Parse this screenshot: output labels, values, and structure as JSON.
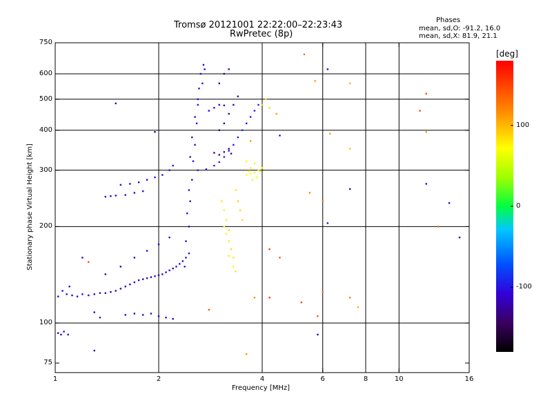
{
  "chart_data": {
    "type": "scatter",
    "title": "Tromsø 20121001 22:22:00–22:23:43",
    "subtitle": "RwPretec (8p)",
    "xlabel": "Frequency [MHz]",
    "ylabel": "Stationary phase Virtual Height [km]",
    "x_scale": "log",
    "y_scale": "log",
    "xlim": [
      1,
      16
    ],
    "ylim": [
      70,
      750
    ],
    "x_ticks": [
      {
        "value": 1,
        "label": "1"
      },
      {
        "value": 2,
        "label": "2"
      },
      {
        "value": 4,
        "label": "4"
      },
      {
        "value": 6,
        "label": "6"
      },
      {
        "value": 8,
        "label": "8"
      },
      {
        "value": 10,
        "label": "10"
      },
      {
        "value": 16,
        "label": "16"
      }
    ],
    "x_grid": [
      2,
      4,
      6,
      8,
      10
    ],
    "y_ticks": [
      {
        "value": 75,
        "label": "75"
      },
      {
        "value": 100,
        "label": "100"
      },
      {
        "value": 200,
        "label": "200"
      },
      {
        "value": 300,
        "label": "300"
      },
      {
        "value": 400,
        "label": "400"
      },
      {
        "value": 500,
        "label": "500"
      },
      {
        "value": 600,
        "label": "600"
      },
      {
        "value": 750,
        "label": "750"
      }
    ],
    "y_grid": [
      100,
      200,
      300,
      400,
      500,
      600
    ],
    "grid": true,
    "legend": {
      "title": "Phases",
      "lines": [
        "mean, sd,O: -91.2, 16.0",
        "mean, sd,X: 81.9, 21.1"
      ]
    },
    "colorbar": {
      "label": "[deg]",
      "range": [
        -180,
        180
      ],
      "ticks": [
        {
          "value": 100,
          "label": "100"
        },
        {
          "value": 0,
          "label": "0"
        },
        {
          "value": -100,
          "label": "-100"
        }
      ]
    },
    "series": [
      {
        "points": [
          [
            1.02,
            93,
            -120
          ],
          [
            1.04,
            92,
            -115
          ],
          [
            1.06,
            94,
            -110
          ],
          [
            1.09,
            92,
            -118
          ],
          [
            1.02,
            121,
            -105
          ],
          [
            1.05,
            126,
            -112
          ],
          [
            1.08,
            123,
            -118
          ],
          [
            1.12,
            122,
            -110
          ],
          [
            1.16,
            121,
            -120
          ],
          [
            1.2,
            123,
            -114
          ],
          [
            1.25,
            122,
            -116
          ],
          [
            1.3,
            123,
            -118
          ],
          [
            1.35,
            124,
            -115
          ],
          [
            1.4,
            124,
            -120
          ],
          [
            1.45,
            125,
            -118
          ],
          [
            1.5,
            126,
            -120
          ],
          [
            1.55,
            128,
            -122
          ],
          [
            1.6,
            130,
            -118
          ],
          [
            1.65,
            132,
            -115
          ],
          [
            1.7,
            134,
            -112
          ],
          [
            1.75,
            136,
            -118
          ],
          [
            1.8,
            137,
            -120
          ],
          [
            1.85,
            138,
            -116
          ],
          [
            1.9,
            139,
            -112
          ],
          [
            1.95,
            140,
            -110
          ],
          [
            2.0,
            141,
            -114
          ],
          [
            2.05,
            142,
            -108
          ],
          [
            2.1,
            144,
            -112
          ],
          [
            2.15,
            146,
            -106
          ],
          [
            2.2,
            148,
            -110
          ],
          [
            2.25,
            150,
            -105
          ],
          [
            2.3,
            153,
            -100
          ],
          [
            2.35,
            156,
            -106
          ],
          [
            2.4,
            160,
            -110
          ],
          [
            2.45,
            165,
            -102
          ],
          [
            1.55,
            150,
            -130
          ],
          [
            1.7,
            160,
            -118
          ],
          [
            1.85,
            168,
            -112
          ],
          [
            2.0,
            176,
            -110
          ],
          [
            2.15,
            185,
            -105
          ],
          [
            1.3,
            108,
            -108
          ],
          [
            1.35,
            104,
            -112
          ],
          [
            1.6,
            106,
            -115
          ],
          [
            1.7,
            107,
            -118
          ],
          [
            1.8,
            106,
            -110
          ],
          [
            1.9,
            107,
            -112
          ],
          [
            2.0,
            105,
            -108
          ],
          [
            2.1,
            104,
            -110
          ],
          [
            2.2,
            103,
            -115
          ],
          [
            1.4,
            248,
            -110
          ],
          [
            1.45,
            249,
            -115
          ],
          [
            1.5,
            250,
            -112
          ],
          [
            1.6,
            251,
            -118
          ],
          [
            1.7,
            255,
            -114
          ],
          [
            1.8,
            258,
            -110
          ],
          [
            1.55,
            270,
            -112
          ],
          [
            1.65,
            272,
            -115
          ],
          [
            1.75,
            275,
            -108
          ],
          [
            1.85,
            280,
            -110
          ],
          [
            1.95,
            285,
            -105
          ],
          [
            2.05,
            290,
            -102
          ],
          [
            2.15,
            300,
            -100
          ],
          [
            2.2,
            310,
            -106
          ],
          [
            2.45,
            200,
            -110
          ],
          [
            2.47,
            240,
            -112
          ],
          [
            2.5,
            280,
            -108
          ],
          [
            2.52,
            320,
            -106
          ],
          [
            2.55,
            360,
            -104
          ],
          [
            2.58,
            420,
            -102
          ],
          [
            2.6,
            480,
            -100
          ],
          [
            2.62,
            540,
            -104
          ],
          [
            2.65,
            600,
            -108
          ],
          [
            2.7,
            640,
            -110
          ],
          [
            2.72,
            620,
            -106
          ],
          [
            2.68,
            560,
            -104
          ],
          [
            2.6,
            500,
            -100
          ],
          [
            2.55,
            440,
            -108
          ],
          [
            2.5,
            380,
            -112
          ],
          [
            2.47,
            330,
            -110
          ],
          [
            2.45,
            260,
            -104
          ],
          [
            2.42,
            220,
            -106
          ],
          [
            2.4,
            180,
            -110
          ],
          [
            2.38,
            150,
            -106
          ],
          [
            2.6,
            300,
            -100
          ],
          [
            2.75,
            302,
            -104
          ],
          [
            2.9,
            310,
            -98
          ],
          [
            3.0,
            318,
            -102
          ],
          [
            3.1,
            330,
            -96
          ],
          [
            3.2,
            345,
            -100
          ],
          [
            3.3,
            360,
            -104
          ],
          [
            3.4,
            380,
            -98
          ],
          [
            3.5,
            400,
            -96
          ],
          [
            3.6,
            420,
            -100
          ],
          [
            3.7,
            440,
            -104
          ],
          [
            3.8,
            460,
            -98
          ],
          [
            3.9,
            480,
            -96
          ],
          [
            2.9,
            340,
            -135
          ],
          [
            3.0,
            335,
            -130
          ],
          [
            3.1,
            342,
            -125
          ],
          [
            3.2,
            350,
            -128
          ],
          [
            3.25,
            338,
            -132
          ],
          [
            3.0,
            400,
            -140
          ],
          [
            3.1,
            420,
            -135
          ],
          [
            3.2,
            450,
            -138
          ],
          [
            3.3,
            480,
            -130
          ],
          [
            3.4,
            510,
            -135
          ],
          [
            3.0,
            560,
            -130
          ],
          [
            3.1,
            600,
            -135
          ],
          [
            3.2,
            620,
            -128
          ],
          [
            2.8,
            460,
            -110
          ],
          [
            2.9,
            470,
            -112
          ],
          [
            3.0,
            480,
            -108
          ],
          [
            3.1,
            478,
            -106
          ],
          [
            1.4,
            142,
            -138
          ],
          [
            1.2,
            160,
            -115
          ],
          [
            1.1,
            130,
            -118
          ],
          [
            1.3,
            82,
            -125
          ],
          [
            1.95,
            395,
            -125
          ],
          [
            1.5,
            485,
            -115
          ],
          [
            6.2,
            620,
            -105
          ],
          [
            4.5,
            385,
            -110
          ],
          [
            6.2,
            205,
            -110
          ],
          [
            5.8,
            92,
            -120
          ],
          [
            7.2,
            262,
            -115
          ],
          [
            12,
            272,
            -100
          ],
          [
            14,
            237,
            -110
          ],
          [
            15,
            185,
            -130
          ]
        ]
      },
      {
        "points": [
          [
            3.6,
            290,
            70
          ],
          [
            3.7,
            293,
            72
          ],
          [
            3.8,
            295,
            68
          ],
          [
            3.9,
            300,
            74
          ],
          [
            4.0,
            305,
            70
          ],
          [
            3.7,
            305,
            65
          ],
          [
            3.8,
            315,
            60
          ],
          [
            3.6,
            320,
            68
          ],
          [
            3.75,
            280,
            66
          ],
          [
            3.85,
            285,
            70
          ],
          [
            3.95,
            298,
            72
          ],
          [
            3.65,
            298,
            74
          ],
          [
            3.05,
            240,
            80
          ],
          [
            3.1,
            225,
            76
          ],
          [
            3.15,
            210,
            78
          ],
          [
            3.2,
            195,
            82
          ],
          [
            3.2,
            180,
            80
          ],
          [
            3.25,
            170,
            84
          ],
          [
            3.3,
            160,
            80
          ],
          [
            3.3,
            150,
            78
          ],
          [
            3.35,
            145,
            82
          ],
          [
            3.1,
            200,
            70
          ],
          [
            3.15,
            190,
            76
          ],
          [
            3.2,
            162,
            80
          ],
          [
            3.35,
            260,
            85
          ],
          [
            3.4,
            240,
            90
          ],
          [
            3.45,
            225,
            88
          ],
          [
            3.5,
            210,
            90
          ],
          [
            4.0,
            480,
            90
          ],
          [
            4.1,
            500,
            84
          ],
          [
            4.2,
            470,
            86
          ],
          [
            3.8,
            120,
            120
          ],
          [
            5.3,
            690,
            130
          ],
          [
            5.7,
            570,
            110
          ],
          [
            7.2,
            560,
            100
          ],
          [
            7.2,
            350,
            95
          ],
          [
            7.6,
            112,
            105
          ],
          [
            6.3,
            390,
            110
          ],
          [
            3.7,
            370,
            112
          ],
          [
            4.4,
            450,
            110
          ],
          [
            6.0,
            240,
            125
          ],
          [
            5.5,
            255,
            120
          ],
          [
            7.2,
            120,
            125
          ],
          [
            6.0,
            125,
            130
          ],
          [
            5.8,
            105,
            140
          ],
          [
            5.2,
            116,
            148
          ],
          [
            4.2,
            170,
            150
          ],
          [
            4.2,
            120,
            155
          ],
          [
            4.5,
            160,
            140
          ],
          [
            11.5,
            460,
            150
          ],
          [
            12,
            520,
            145
          ],
          [
            12,
            395,
            110
          ],
          [
            3.6,
            80,
            110
          ],
          [
            2.8,
            110,
            140
          ],
          [
            1.25,
            155,
            145
          ],
          [
            13,
            200,
            130
          ]
        ]
      }
    ]
  }
}
